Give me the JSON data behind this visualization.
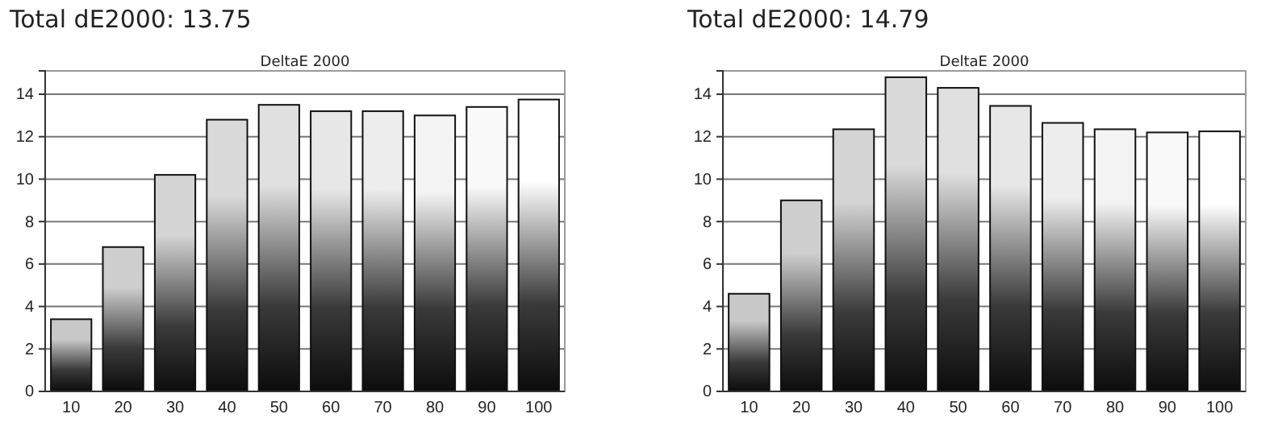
{
  "chart_data": [
    {
      "type": "bar",
      "title": "Total dE2000: 13.75",
      "subtitle": "DeltaE 2000",
      "categories": [
        "10",
        "20",
        "30",
        "40",
        "50",
        "60",
        "70",
        "80",
        "90",
        "100"
      ],
      "values": [
        3.4,
        6.8,
        10.2,
        12.8,
        13.5,
        13.2,
        13.2,
        13.0,
        13.4,
        13.75
      ],
      "ylim": [
        0,
        15.1
      ],
      "yticks": [
        0,
        2,
        4,
        6,
        8,
        10,
        12,
        14
      ],
      "grid": "y"
    },
    {
      "type": "bar",
      "title": "Total dE2000: 14.79",
      "subtitle": "DeltaE 2000",
      "categories": [
        "10",
        "20",
        "30",
        "40",
        "50",
        "60",
        "70",
        "80",
        "90",
        "100"
      ],
      "values": [
        4.6,
        9.0,
        12.35,
        14.8,
        14.3,
        13.45,
        12.65,
        12.35,
        12.2,
        12.25
      ],
      "ylim": [
        0,
        15.1
      ],
      "yticks": [
        0,
        2,
        4,
        6,
        8,
        10,
        12,
        14
      ],
      "grid": "y"
    }
  ]
}
